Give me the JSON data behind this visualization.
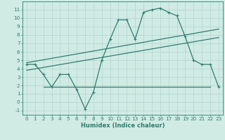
{
  "zigzag_x": [
    0,
    1,
    2,
    3,
    4,
    5,
    6,
    7,
    8,
    9,
    10,
    11,
    12,
    13,
    14,
    15,
    16,
    17,
    18,
    19,
    20,
    21,
    22,
    23
  ],
  "zigzag_y": [
    4.5,
    4.5,
    3.3,
    1.8,
    3.3,
    3.3,
    1.5,
    -0.8,
    1.2,
    5.0,
    7.5,
    9.8,
    9.8,
    7.5,
    10.7,
    11.0,
    11.2,
    10.7,
    10.3,
    7.8,
    5.0,
    4.5,
    4.5,
    1.8
  ],
  "line1_x": [
    0,
    23
  ],
  "line1_y": [
    4.7,
    8.7
  ],
  "line2_x": [
    0,
    23
  ],
  "line2_y": [
    3.8,
    7.7
  ],
  "line3_x": [
    2,
    22
  ],
  "line3_y": [
    1.8,
    1.8
  ],
  "color": "#2e7d6e",
  "bg_color": "#d0ebe4",
  "grid_color": "#aacfc8",
  "xlabel": "Humidex (Indice chaleur)",
  "ylim": [
    -1.5,
    12
  ],
  "xlim": [
    -0.5,
    23.5
  ],
  "yticks": [
    -1,
    0,
    1,
    2,
    3,
    4,
    5,
    6,
    7,
    8,
    9,
    10,
    11
  ],
  "xticks": [
    0,
    1,
    2,
    3,
    4,
    5,
    6,
    7,
    8,
    9,
    10,
    11,
    12,
    13,
    14,
    15,
    16,
    17,
    18,
    19,
    20,
    21,
    22,
    23
  ],
  "label_fontsize": 6.0,
  "tick_fontsize": 5.2,
  "line_width": 0.9,
  "marker_size": 3.0
}
